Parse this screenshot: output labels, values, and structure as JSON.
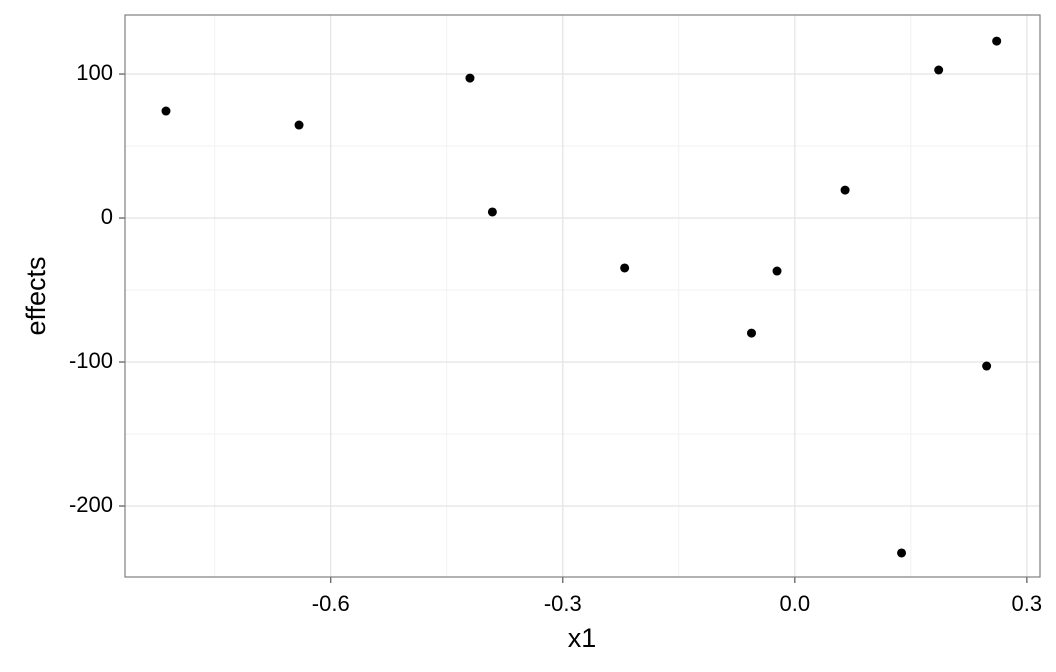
{
  "chart_data": {
    "type": "scatter",
    "x_label": "x1",
    "y_label": "effects",
    "x": [
      -0.813,
      -0.641,
      -0.42,
      -0.391,
      -0.22,
      -0.056,
      -0.023,
      0.065,
      0.138,
      0.186,
      0.248,
      0.261
    ],
    "values": [
      74.3,
      64.6,
      97.2,
      4.2,
      -34.7,
      -79.9,
      -36.8,
      19.4,
      -232.6,
      102.8,
      -102.8,
      122.9
    ],
    "color": "#000000",
    "xlim": [
      -0.866,
      0.317
    ],
    "ylim": [
      -249.3,
      141
    ],
    "xticks": [
      {
        "value": -0.6,
        "label": "-0.6"
      },
      {
        "value": -0.3,
        "label": "-0.3"
      },
      {
        "value": 0,
        "label": "0.0"
      },
      {
        "value": 0.3,
        "label": "0.3"
      }
    ],
    "yticks": [
      -200,
      -100,
      0,
      100
    ],
    "xminor": [
      -0.75,
      -0.45,
      -0.15,
      0.15
    ],
    "yminor": [
      -150,
      -50,
      50
    ],
    "grid": true
  }
}
